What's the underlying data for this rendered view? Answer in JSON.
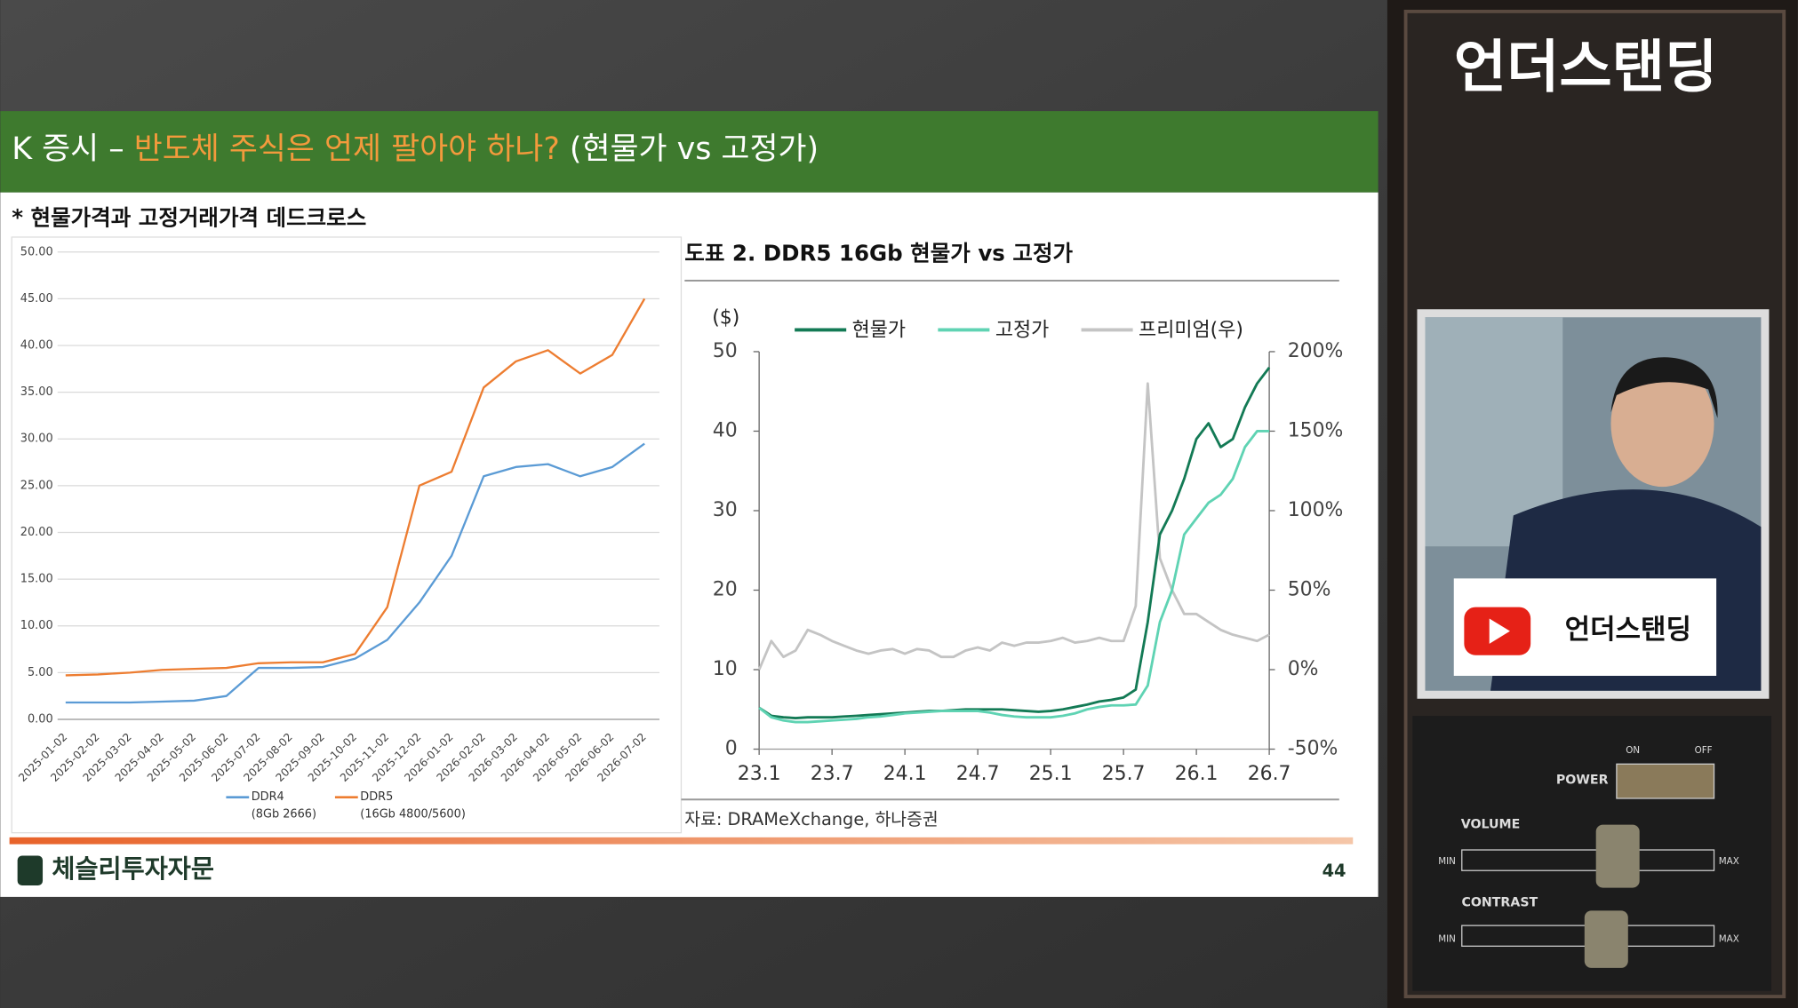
{
  "header": {
    "prefix": "K 증시 – ",
    "highlight": "반도체 주식은 언제 팔아야 하나?",
    "suffix": " (현물가 vs 고정가)"
  },
  "subtitle": "* 현물가격과 고정거래가격 데드크로스",
  "chart_data": [
    {
      "type": "line",
      "categories": [
        "2025-01-02",
        "2025-02-02",
        "2025-03-02",
        "2025-04-02",
        "2025-05-02",
        "2025-06-02",
        "2025-07-02",
        "2025-08-02",
        "2025-09-02",
        "2025-10-02",
        "2025-11-02",
        "2025-12-02",
        "2026-01-02",
        "2026-02-02",
        "2026-03-02",
        "2026-04-02",
        "2026-05-02",
        "2026-06-02",
        "2026-07-02"
      ],
      "series": [
        {
          "name": "DDR4",
          "note": "(8Gb 2666)",
          "color": "#5b9bd5",
          "values": [
            1.8,
            1.8,
            1.8,
            1.9,
            2.0,
            2.5,
            5.5,
            5.5,
            5.6,
            6.5,
            8.5,
            12.5,
            17.5,
            26.0,
            27.0,
            27.3,
            26.0,
            27.0,
            29.5
          ]
        },
        {
          "name": "DDR5",
          "note": "(16Gb 4800/5600)",
          "color": "#ed7d31",
          "values": [
            4.7,
            4.8,
            5.0,
            5.3,
            5.4,
            5.5,
            6.0,
            6.1,
            6.1,
            7.0,
            12.0,
            25.0,
            26.5,
            35.5,
            38.3,
            39.5,
            37.0,
            39.0,
            45.0
          ]
        }
      ],
      "ylim": [
        0,
        50
      ],
      "yticks": [
        {
          "value": 0,
          "label": "0.00"
        },
        {
          "value": 5,
          "label": "5.00"
        },
        {
          "value": 10,
          "label": "10.00"
        },
        {
          "value": 15,
          "label": "15.00"
        },
        {
          "value": 20,
          "label": "20.00"
        },
        {
          "value": 25,
          "label": "25.00"
        },
        {
          "value": 30,
          "label": "30.00"
        },
        {
          "value": 35,
          "label": "35.00"
        },
        {
          "value": 40,
          "label": "40.00"
        },
        {
          "value": 45,
          "label": "45.00"
        },
        {
          "value": 50,
          "label": "50.00"
        }
      ],
      "grid": true
    },
    {
      "type": "line",
      "title": "도표 2. DDR5 16Gb 현물가 vs 고정가",
      "y_unit": "($)",
      "source": "자료: DRAMeXchange, 하나증권",
      "categories": [
        "23.1",
        null,
        null,
        null,
        null,
        null,
        "23.7",
        null,
        null,
        null,
        null,
        null,
        "24.1",
        null,
        null,
        null,
        null,
        null,
        "24.7",
        null,
        null,
        null,
        null,
        null,
        "25.1",
        null,
        null,
        null,
        null,
        null,
        "25.7",
        null,
        null,
        null,
        null,
        null,
        "26.1",
        null,
        null,
        null,
        null,
        null,
        "26.7"
      ],
      "series": [
        {
          "name": "현물가",
          "color": "#137a55",
          "values": [
            5.2,
            4.2,
            4.0,
            3.9,
            4.0,
            4.0,
            4.0,
            4.1,
            4.2,
            4.3,
            4.4,
            4.5,
            4.6,
            4.7,
            4.8,
            4.8,
            4.9,
            5.0,
            5.0,
            5.0,
            5.0,
            4.9,
            4.8,
            4.7,
            4.8,
            5.0,
            5.3,
            5.6,
            6.0,
            6.2,
            6.5,
            7.5,
            16,
            27,
            30,
            34,
            39,
            41,
            38,
            39,
            43,
            46,
            48
          ]
        },
        {
          "name": "고정가",
          "color": "#5fd3b3",
          "values": [
            5.2,
            4.0,
            3.6,
            3.4,
            3.4,
            3.5,
            3.6,
            3.7,
            3.8,
            4.0,
            4.1,
            4.3,
            4.5,
            4.6,
            4.7,
            4.8,
            4.8,
            4.8,
            4.8,
            4.6,
            4.3,
            4.1,
            4.0,
            4.0,
            4.0,
            4.2,
            4.5,
            5.0,
            5.3,
            5.5,
            5.5,
            5.6,
            8,
            16,
            20,
            27,
            29,
            31,
            32,
            34,
            38,
            40,
            40
          ]
        },
        {
          "name": "프리미엄(우)",
          "color": "#c4c4c4",
          "axis": "y2",
          "values": [
            0,
            18,
            8,
            12,
            25,
            22,
            18,
            15,
            12,
            10,
            12,
            13,
            10,
            13,
            12,
            8,
            8,
            12,
            14,
            12,
            17,
            15,
            17,
            17,
            18,
            20,
            17,
            18,
            20,
            18,
            18,
            40,
            180,
            70,
            50,
            35,
            35,
            30,
            25,
            22,
            20,
            18,
            22
          ]
        }
      ],
      "ylim": [
        0,
        50
      ],
      "yticks": [
        0,
        10,
        20,
        30,
        40,
        50
      ],
      "y2lim": [
        -50,
        200
      ],
      "y2ticks": [
        {
          "value": -50,
          "label": "-50%"
        },
        {
          "value": 0,
          "label": "0%"
        },
        {
          "value": 50,
          "label": "50%"
        },
        {
          "value": 100,
          "label": "100%"
        },
        {
          "value": 150,
          "label": "150%"
        },
        {
          "value": 200,
          "label": "200%"
        }
      ],
      "grid": false
    }
  ],
  "footer": {
    "company": "체슬리투자자문",
    "page": 44
  },
  "channel": {
    "title": "언더스탠딩",
    "badge": "언더스탠딩"
  },
  "panel": {
    "power": "POWER",
    "on": "ON",
    "off": "OFF",
    "volume": "VOLUME",
    "contrast": "CONTRAST",
    "min": "MIN",
    "max": "MAX"
  }
}
